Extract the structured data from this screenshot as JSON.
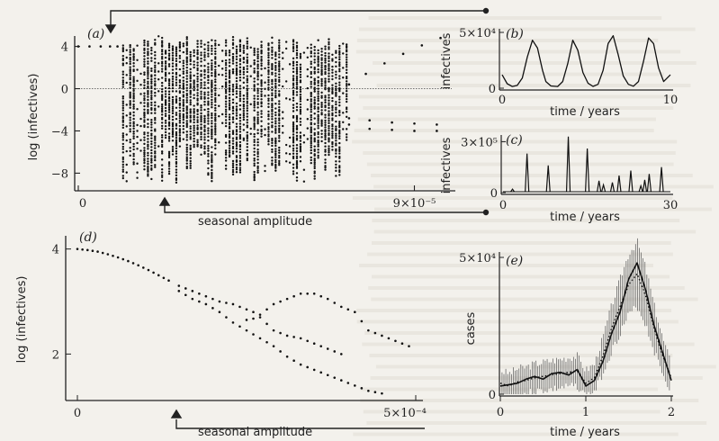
{
  "chart_data": [
    {
      "id": "a",
      "type": "scatter",
      "panel_label": "(a)",
      "xlabel": "seasonal amplitude",
      "ylabel": "log (infectives)",
      "x_ticks": [
        "0",
        "9×10⁻⁵"
      ],
      "y_ticks": [
        "4",
        "0",
        "−4",
        "−8"
      ],
      "xlim": [
        0,
        0.0001
      ],
      "ylim": [
        -9.5,
        5.5
      ],
      "reference_line_y": 0,
      "arrow_marker_x": 2e-05,
      "left_segment": {
        "x": [
          0.0,
          3e-06,
          6e-06,
          8.5e-06,
          1.05e-05
        ],
        "y": [
          4,
          4,
          4,
          4,
          4
        ]
      },
      "chaotic_region": {
        "x_start": 1.2e-05,
        "x_end": 7.2e-05,
        "y_min": -9.0,
        "y_max": 5.0
      },
      "right_upper_branch": {
        "x": [
          7.25e-05,
          7.7e-05,
          8.2e-05,
          8.7e-05,
          9.2e-05,
          9.7e-05
        ],
        "y": [
          0.4,
          1.4,
          2.4,
          3.3,
          4.1,
          4.8
        ]
      },
      "right_lower_branch_1": {
        "x": [
          7.25e-05,
          7.8e-05,
          8.4e-05,
          9e-05,
          9.6e-05
        ],
        "y": [
          -2.8,
          -3.0,
          -3.2,
          -3.3,
          -3.4
        ]
      },
      "right_lower_branch_2": {
        "x": [
          7.25e-05,
          7.8e-05,
          8.4e-05,
          9e-05,
          9.6e-05
        ],
        "y": [
          -3.4,
          -3.8,
          -3.9,
          -4.0,
          -4.0
        ]
      }
    },
    {
      "id": "b",
      "type": "line",
      "panel_label": "(b)",
      "xlabel": "time / years",
      "ylabel": "infectives",
      "x_ticks": [
        "0",
        "10"
      ],
      "y_ticks": [
        "5×10⁴",
        "0"
      ],
      "xlim": [
        0,
        10
      ],
      "ylim": [
        0,
        50000
      ],
      "x": [
        0,
        0.3,
        0.6,
        0.9,
        1.2,
        1.5,
        1.8,
        2.1,
        2.4,
        2.6,
        2.9,
        3.3,
        3.6,
        3.9,
        4.2,
        4.5,
        4.8,
        5.1,
        5.4,
        5.7,
        6.0,
        6.3,
        6.6,
        6.9,
        7.2,
        7.5,
        7.8,
        8.1,
        8.4,
        8.7,
        9.0,
        9.3,
        9.6,
        10.0
      ],
      "y": [
        12000,
        4000,
        1500,
        2500,
        9000,
        28000,
        43000,
        36000,
        16000,
        6000,
        2000,
        1500,
        6000,
        22000,
        43000,
        34000,
        14000,
        4500,
        1600,
        3500,
        16000,
        40000,
        47000,
        30000,
        11000,
        3500,
        1800,
        6000,
        24000,
        45000,
        40000,
        18000,
        6000,
        12000
      ]
    },
    {
      "id": "c",
      "type": "line",
      "panel_label": "(c)",
      "xlabel": "time / years",
      "ylabel": "infectives",
      "x_ticks": [
        "0",
        "30"
      ],
      "y_ticks": [
        "3×10⁵",
        "0"
      ],
      "xlim": [
        0,
        30
      ],
      "ylim": [
        0,
        350000
      ],
      "spikes": [
        {
          "x": 1.7,
          "y": 20000
        },
        {
          "x": 4.3,
          "y": 230000
        },
        {
          "x": 8.1,
          "y": 160000
        },
        {
          "x": 11.7,
          "y": 330000
        },
        {
          "x": 15.1,
          "y": 260000
        },
        {
          "x": 17.2,
          "y": 70000
        },
        {
          "x": 18.0,
          "y": 45000
        },
        {
          "x": 19.6,
          "y": 60000
        },
        {
          "x": 20.8,
          "y": 100000
        },
        {
          "x": 22.9,
          "y": 130000
        },
        {
          "x": 24.7,
          "y": 40000
        },
        {
          "x": 25.4,
          "y": 75000
        },
        {
          "x": 26.2,
          "y": 110000
        },
        {
          "x": 28.4,
          "y": 150000
        }
      ]
    },
    {
      "id": "d",
      "type": "scatter",
      "panel_label": "(d)",
      "xlabel": "seasonal amplitude",
      "ylabel": "log (infectives)",
      "x_ticks": [
        "0",
        "5×10⁻⁴"
      ],
      "y_ticks": [
        "4",
        "2"
      ],
      "xlim": [
        0,
        0.0005
      ],
      "ylim": [
        1.15,
        4.2
      ],
      "arrow_marker_x": 0.00015,
      "single_branch": {
        "x": [
          0.0,
          1.5e-05,
          3e-05,
          4.5e-05,
          6e-05,
          7.5e-05,
          9e-05,
          0.000105,
          0.00012,
          0.000135
        ],
        "y": [
          4.0,
          3.98,
          3.95,
          3.9,
          3.84,
          3.77,
          3.69,
          3.6,
          3.5,
          3.4
        ]
      },
      "upper_branch": {
        "x": [
          0.00015,
          0.00017,
          0.00019,
          0.00021,
          0.00023,
          0.00025,
          0.00027,
          0.00029,
          0.00031,
          0.00033,
          0.00035,
          0.00037,
          0.00039,
          0.00041,
          0.00043,
          0.00045,
          0.00047,
          0.00049
        ],
        "y": [
          3.3,
          3.2,
          3.1,
          3.0,
          2.95,
          2.85,
          2.75,
          2.95,
          3.05,
          3.15,
          3.15,
          3.05,
          2.9,
          2.8,
          2.45,
          2.35,
          2.25,
          2.15
        ]
      },
      "lower_branch": {
        "x": [
          0.00015,
          0.00017,
          0.00019,
          0.00021,
          0.00023,
          0.00025,
          0.00027,
          0.00029,
          0.00031,
          0.00033,
          0.00035,
          0.00037,
          0.00039,
          0.00041,
          0.00043,
          0.00045
        ],
        "y": [
          3.2,
          3.05,
          2.95,
          2.8,
          2.6,
          2.45,
          2.3,
          2.15,
          1.95,
          1.8,
          1.7,
          1.6,
          1.5,
          1.4,
          1.3,
          1.25
        ]
      },
      "middle_branch": {
        "x": [
          0.00025,
          0.00027,
          0.00029,
          0.00031,
          0.00033,
          0.00035,
          0.00037,
          0.00039
        ],
        "y": [
          2.65,
          2.7,
          2.45,
          2.35,
          2.3,
          2.2,
          2.1,
          2.0
        ]
      }
    },
    {
      "id": "e",
      "type": "line",
      "panel_label": "(e)",
      "xlabel": "time / years",
      "ylabel": "cases",
      "x_ticks": [
        "0",
        "1",
        "2"
      ],
      "y_ticks": [
        "5×10⁴",
        "0"
      ],
      "xlim": [
        0,
        2
      ],
      "ylim": [
        0,
        50000
      ],
      "x": [
        0,
        0.1,
        0.2,
        0.3,
        0.4,
        0.5,
        0.6,
        0.7,
        0.8,
        0.9,
        1.0,
        1.1,
        1.2,
        1.3,
        1.4,
        1.5,
        1.6,
        1.7,
        1.8,
        1.9,
        2.0
      ],
      "series": [
        {
          "name": "",
          "style": "solid",
          "values": [
            3000,
            3500,
            4000,
            5500,
            6500,
            5500,
            7500,
            8000,
            7000,
            9000,
            3000,
            5000,
            12000,
            22000,
            30000,
            42000,
            48000,
            38000,
            25000,
            15000,
            5000
          ]
        },
        {
          "name": "",
          "style": "dotted",
          "values": [
            4000,
            3000,
            4500,
            5000,
            6000,
            6500,
            7000,
            7500,
            8000,
            8500,
            4000,
            6000,
            14000,
            24000,
            32000,
            40000,
            44000,
            36000,
            24000,
            14000,
            6000
          ]
        }
      ]
    }
  ]
}
